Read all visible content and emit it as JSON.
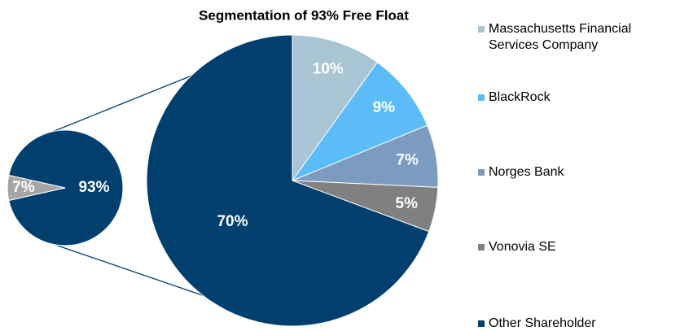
{
  "chart_data": [
    {
      "type": "pie",
      "title": "Segmentation of 93% Free Float",
      "categories": [
        "Massachusetts Financial Services Company",
        "BlackRock",
        "Norges Bank",
        "Vonovia SE",
        "Other Shareholder"
      ],
      "values": [
        10,
        9,
        7,
        5,
        70
      ],
      "value_labels": [
        "10%",
        "9%",
        "7%",
        "5%",
        "70%"
      ],
      "colors": [
        "#a9c4d2",
        "#5bbcf7",
        "#7b9cc0",
        "#808080",
        "#003f6e"
      ]
    },
    {
      "type": "pie",
      "values": [
        93,
        7
      ],
      "value_labels": [
        "93%",
        "7%"
      ],
      "colors": [
        "#003f6e",
        "#a6a6a6"
      ]
    }
  ]
}
